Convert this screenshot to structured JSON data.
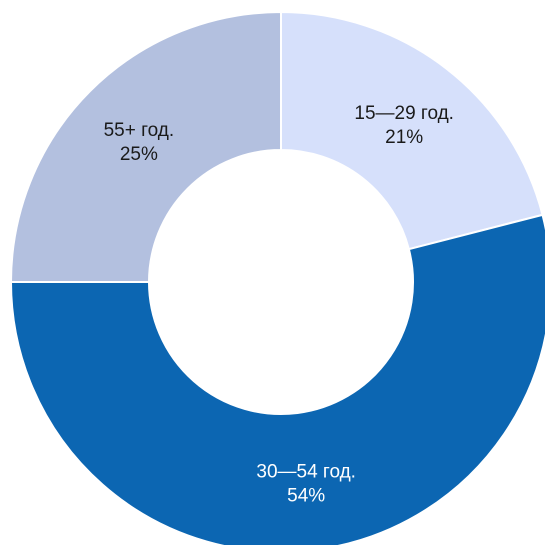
{
  "chart_data": {
    "type": "pie",
    "donut": true,
    "slices": [
      {
        "label": "15—29 год.",
        "value": 21,
        "value_label": "21%",
        "color": "#d6e0fb",
        "text_color": "#1a1a1a"
      },
      {
        "label": "30—54 год.",
        "value": 54,
        "value_label": "54%",
        "color": "#0c66b2",
        "text_color": "#ffffff"
      },
      {
        "label": "55+ год.",
        "value": 25,
        "value_label": "25%",
        "color": "#b3c0df",
        "text_color": "#1a1a1a"
      }
    ]
  }
}
